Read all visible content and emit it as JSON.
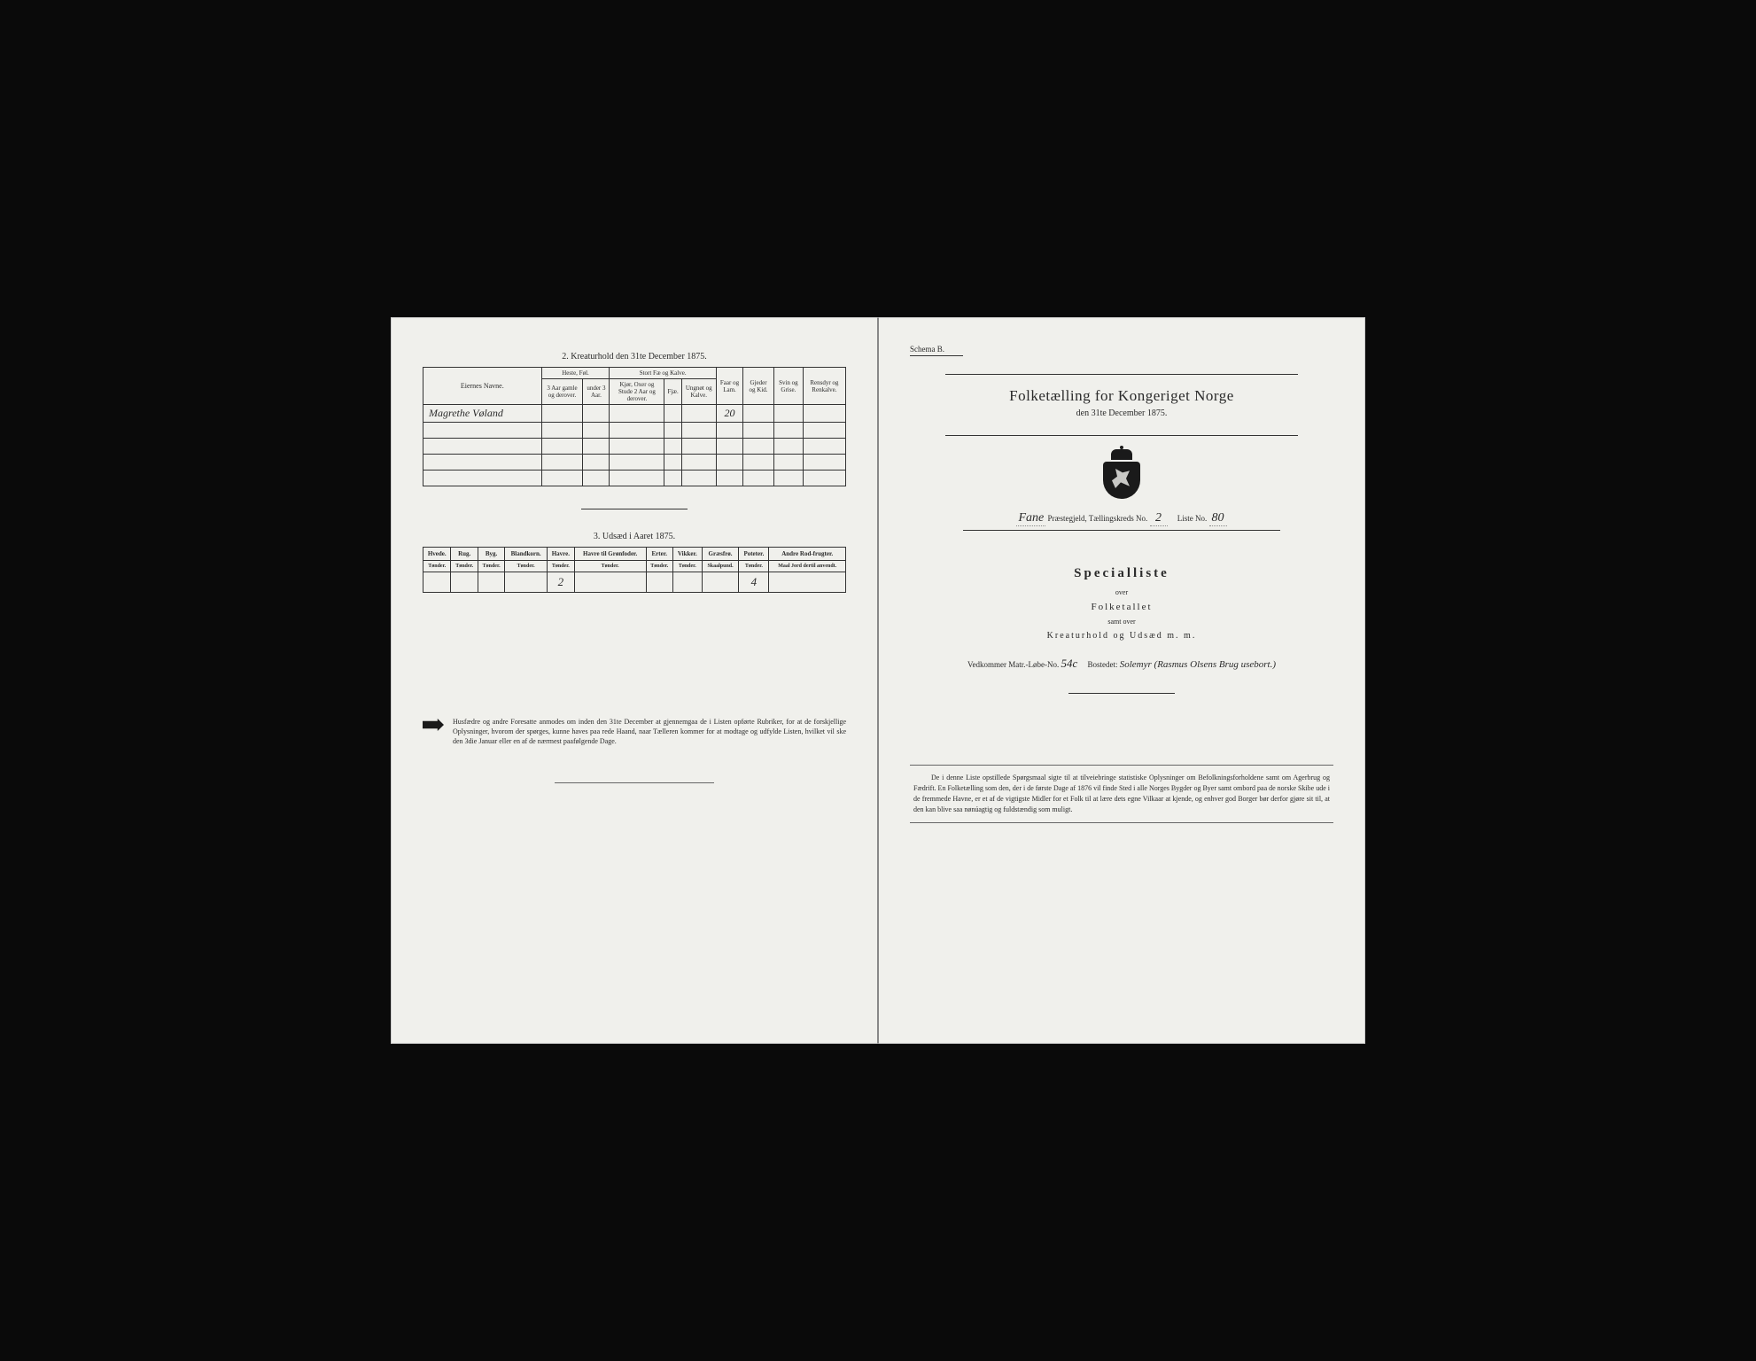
{
  "left": {
    "section2_title": "2.  Kreaturhold den 31te December 1875.",
    "table2": {
      "col_eier": "Eiernes Navne.",
      "grp_heste": "Heste, Føl.",
      "grp_stort": "Stort Fæ og Kalve.",
      "col_faar": "Faar og Lam.",
      "col_gjeder": "Gjeder og Kid.",
      "col_svin": "Svin og Grise.",
      "col_rensdyr": "Rensdyr og Renkalve.",
      "sub_h1": "3 Aar gamle og derover.",
      "sub_h2": "under 3 Aar.",
      "sub_s1": "Kjør, Oxer og Stude 2 Aar og derover.",
      "sub_s2": "Fjæ.",
      "sub_s3": "Ungnøt og Kalve.",
      "row1_name": "Magrethe Vøland",
      "row1_faar": "20"
    },
    "section3_title": "3.  Udsæd i Aaret 1875.",
    "table3": {
      "cols": [
        "Hvede.",
        "Rug.",
        "Byg.",
        "Blandkorn.",
        "Havre.",
        "Havre til Grønfoder.",
        "Erter.",
        "Vikker.",
        "Græsfrø.",
        "Poteter.",
        "Andre Rod-frugter."
      ],
      "subs": [
        "Tønder.",
        "Tønder.",
        "Tønder.",
        "Tønder.",
        "Tønder.",
        "Tønder.",
        "Tønder.",
        "Tønder.",
        "Skaalpund.",
        "Tønder.",
        "Maal Jord dertil anvendt."
      ],
      "havre": "2",
      "poteter": "4"
    },
    "footer": "Husfædre og andre Foresatte anmodes om inden den 31te December at gjennemgaa de i Listen opførte Rubriker, for at de forskjellige Oplysninger, hvorom der spørges, kunne haves paa rede Haand, naar Tælleren kommer for at modtage og udfylde Listen, hvilket vil ske den 3die Januar eller en af de nærmest paafølgende Dage."
  },
  "right": {
    "schema": "Schema B.",
    "title": "Folketælling for Kongeriget Norge",
    "subtitle": "den 31te December 1875.",
    "parish_label_pre": "Fane",
    "parish_label": "Præstegjeld,  Tællingskreds No.",
    "kreds_no": "2",
    "liste_label": "Liste No.",
    "liste_no": "80",
    "specialliste": "Specialliste",
    "over": "over",
    "folketallet": "Folketallet",
    "samt_over": "samt over",
    "kreatur": "Kreaturhold  og  Udsæd  m. m.",
    "vedk_label": "Vedkommer Matr.-Løbe-No.",
    "matr_no": "54c",
    "bosted_label": "Bostedet:",
    "bosted": "Solemyr (Rasmus Olsens Brug usebort.)",
    "footer": "De i denne Liste opstillede Spørgsmaal sigte til at tilveiebringe statistiske Oplysninger om Befolkningsforholdene samt om Agerbrug og Fædrift.  En Folketælling som den, der i de første Dage af 1876 vil finde Sted i alle Norges Bygder og Byer samt ombord paa de norske Skibe ude i de fremmede Havne, er et af de vigtigste Midler for et Folk til at lære dets egne Vilkaar at kjende, og enhver god Borger bør derfor gjøre sit til, at den kan blive saa nønúagtig og fuldstændig som muligt."
  }
}
